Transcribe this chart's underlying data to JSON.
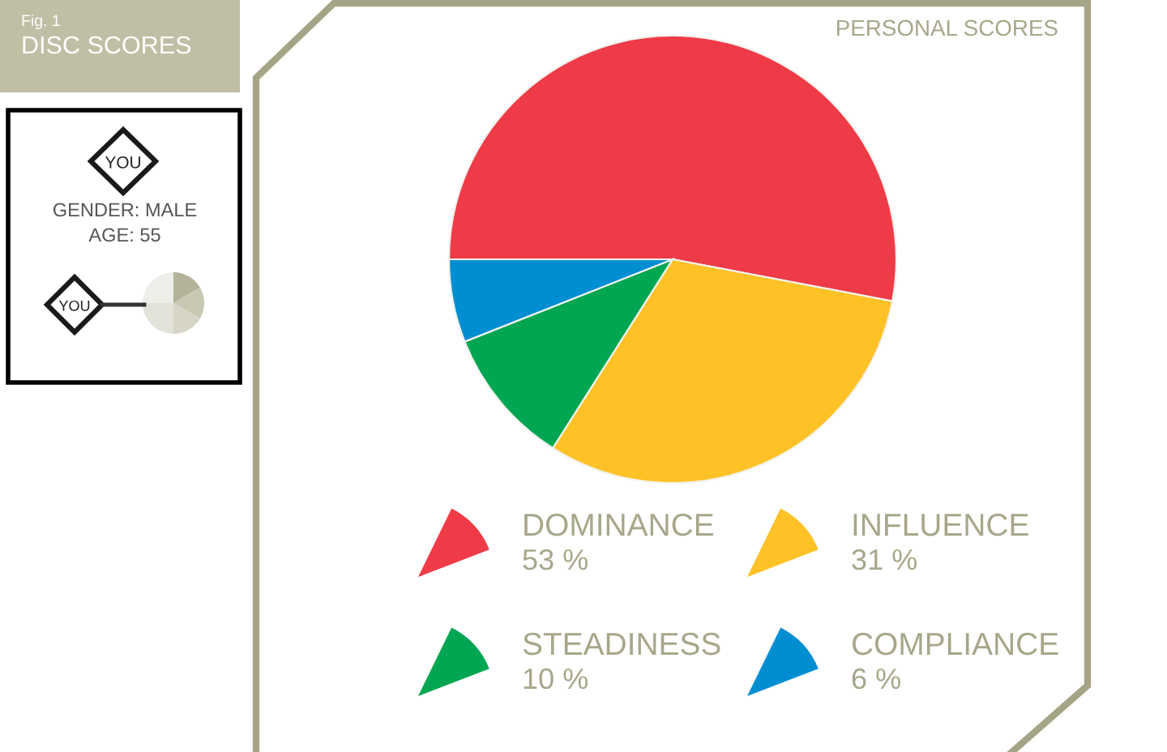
{
  "chart_data": {
    "type": "pie",
    "title": "DISC SCORES",
    "subtitle": "PERSONAL SCORES",
    "categories": [
      "DOMINANCE",
      "INFLUENCE",
      "STEADINESS",
      "COMPLIANCE"
    ],
    "values": [
      53,
      31,
      10,
      6
    ],
    "colors": [
      "#ef3b47",
      "#fec227",
      "#00a651",
      "#008ed2"
    ],
    "value_labels": [
      "53 %",
      "31 %",
      "10 %",
      "6 %"
    ],
    "legend": "bottom",
    "annotations": [
      "Fig. 1",
      "YOU",
      "GENDER: MALE",
      "AGE: 55",
      "YOU"
    ]
  }
}
